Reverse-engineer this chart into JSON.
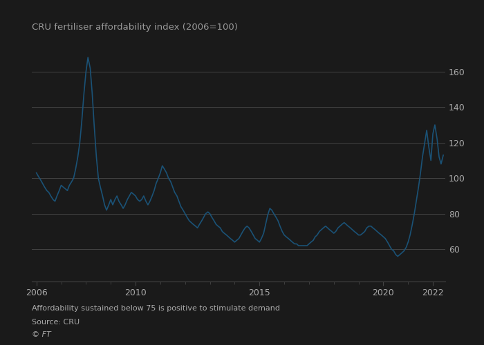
{
  "title": "CRU fertiliser affordability index (2006=100)",
  "footnote1": "Affordability sustained below 75 is positive to stimulate demand",
  "footnote2": "Source: CRU",
  "footnote3": "© FT",
  "line_color": "#1a5276",
  "background_color": "#1a1a1a",
  "grid_color": "#444444",
  "text_color": "#aaaaaa",
  "title_color": "#999999",
  "ylim": [
    42,
    178
  ],
  "yticks": [
    60,
    80,
    100,
    120,
    140,
    160
  ],
  "xlim": [
    2005.8,
    2022.5
  ],
  "xlabel_years": [
    2006,
    2010,
    2015,
    2020,
    2022
  ],
  "data": [
    [
      2006.0,
      103
    ],
    [
      2006.08,
      101
    ],
    [
      2006.17,
      99
    ],
    [
      2006.25,
      97
    ],
    [
      2006.33,
      95
    ],
    [
      2006.42,
      93
    ],
    [
      2006.5,
      92
    ],
    [
      2006.58,
      90
    ],
    [
      2006.67,
      88
    ],
    [
      2006.75,
      87
    ],
    [
      2006.83,
      90
    ],
    [
      2006.92,
      93
    ],
    [
      2007.0,
      96
    ],
    [
      2007.08,
      95
    ],
    [
      2007.17,
      94
    ],
    [
      2007.25,
      93
    ],
    [
      2007.33,
      96
    ],
    [
      2007.42,
      98
    ],
    [
      2007.5,
      100
    ],
    [
      2007.58,
      105
    ],
    [
      2007.67,
      112
    ],
    [
      2007.75,
      120
    ],
    [
      2007.83,
      132
    ],
    [
      2007.92,
      148
    ],
    [
      2008.0,
      160
    ],
    [
      2008.08,
      168
    ],
    [
      2008.17,
      162
    ],
    [
      2008.25,
      148
    ],
    [
      2008.33,
      130
    ],
    [
      2008.42,
      112
    ],
    [
      2008.5,
      100
    ],
    [
      2008.58,
      95
    ],
    [
      2008.67,
      90
    ],
    [
      2008.75,
      85
    ],
    [
      2008.83,
      82
    ],
    [
      2008.92,
      85
    ],
    [
      2009.0,
      88
    ],
    [
      2009.08,
      85
    ],
    [
      2009.17,
      88
    ],
    [
      2009.25,
      90
    ],
    [
      2009.33,
      87
    ],
    [
      2009.42,
      85
    ],
    [
      2009.5,
      83
    ],
    [
      2009.58,
      85
    ],
    [
      2009.67,
      88
    ],
    [
      2009.75,
      90
    ],
    [
      2009.83,
      92
    ],
    [
      2009.92,
      91
    ],
    [
      2010.0,
      90
    ],
    [
      2010.08,
      88
    ],
    [
      2010.17,
      87
    ],
    [
      2010.25,
      88
    ],
    [
      2010.33,
      90
    ],
    [
      2010.42,
      87
    ],
    [
      2010.5,
      85
    ],
    [
      2010.58,
      87
    ],
    [
      2010.67,
      90
    ],
    [
      2010.75,
      93
    ],
    [
      2010.83,
      97
    ],
    [
      2010.92,
      100
    ],
    [
      2011.0,
      103
    ],
    [
      2011.08,
      107
    ],
    [
      2011.17,
      105
    ],
    [
      2011.25,
      103
    ],
    [
      2011.33,
      100
    ],
    [
      2011.42,
      98
    ],
    [
      2011.5,
      95
    ],
    [
      2011.58,
      92
    ],
    [
      2011.67,
      90
    ],
    [
      2011.75,
      87
    ],
    [
      2011.83,
      84
    ],
    [
      2011.92,
      82
    ],
    [
      2012.0,
      80
    ],
    [
      2012.08,
      78
    ],
    [
      2012.17,
      76
    ],
    [
      2012.25,
      75
    ],
    [
      2012.33,
      74
    ],
    [
      2012.42,
      73
    ],
    [
      2012.5,
      72
    ],
    [
      2012.58,
      74
    ],
    [
      2012.67,
      76
    ],
    [
      2012.75,
      78
    ],
    [
      2012.83,
      80
    ],
    [
      2012.92,
      81
    ],
    [
      2013.0,
      80
    ],
    [
      2013.08,
      78
    ],
    [
      2013.17,
      76
    ],
    [
      2013.25,
      74
    ],
    [
      2013.33,
      73
    ],
    [
      2013.42,
      72
    ],
    [
      2013.5,
      70
    ],
    [
      2013.58,
      69
    ],
    [
      2013.67,
      68
    ],
    [
      2013.75,
      67
    ],
    [
      2013.83,
      66
    ],
    [
      2013.92,
      65
    ],
    [
      2014.0,
      64
    ],
    [
      2014.08,
      65
    ],
    [
      2014.17,
      66
    ],
    [
      2014.25,
      68
    ],
    [
      2014.33,
      70
    ],
    [
      2014.42,
      72
    ],
    [
      2014.5,
      73
    ],
    [
      2014.58,
      72
    ],
    [
      2014.67,
      70
    ],
    [
      2014.75,
      68
    ],
    [
      2014.83,
      66
    ],
    [
      2014.92,
      65
    ],
    [
      2015.0,
      64
    ],
    [
      2015.08,
      66
    ],
    [
      2015.17,
      69
    ],
    [
      2015.25,
      74
    ],
    [
      2015.33,
      79
    ],
    [
      2015.42,
      83
    ],
    [
      2015.5,
      82
    ],
    [
      2015.58,
      80
    ],
    [
      2015.67,
      78
    ],
    [
      2015.75,
      76
    ],
    [
      2015.83,
      73
    ],
    [
      2015.92,
      70
    ],
    [
      2016.0,
      68
    ],
    [
      2016.08,
      67
    ],
    [
      2016.17,
      66
    ],
    [
      2016.25,
      65
    ],
    [
      2016.33,
      64
    ],
    [
      2016.42,
      63
    ],
    [
      2016.5,
      63
    ],
    [
      2016.58,
      62
    ],
    [
      2016.67,
      62
    ],
    [
      2016.75,
      62
    ],
    [
      2016.83,
      62
    ],
    [
      2016.92,
      62
    ],
    [
      2017.0,
      63
    ],
    [
      2017.08,
      64
    ],
    [
      2017.17,
      65
    ],
    [
      2017.25,
      67
    ],
    [
      2017.33,
      68
    ],
    [
      2017.42,
      70
    ],
    [
      2017.5,
      71
    ],
    [
      2017.58,
      72
    ],
    [
      2017.67,
      73
    ],
    [
      2017.75,
      72
    ],
    [
      2017.83,
      71
    ],
    [
      2017.92,
      70
    ],
    [
      2018.0,
      69
    ],
    [
      2018.08,
      70
    ],
    [
      2018.17,
      72
    ],
    [
      2018.25,
      73
    ],
    [
      2018.33,
      74
    ],
    [
      2018.42,
      75
    ],
    [
      2018.5,
      74
    ],
    [
      2018.58,
      73
    ],
    [
      2018.67,
      72
    ],
    [
      2018.75,
      71
    ],
    [
      2018.83,
      70
    ],
    [
      2018.92,
      69
    ],
    [
      2019.0,
      68
    ],
    [
      2019.08,
      68
    ],
    [
      2019.17,
      69
    ],
    [
      2019.25,
      70
    ],
    [
      2019.33,
      72
    ],
    [
      2019.42,
      73
    ],
    [
      2019.5,
      73
    ],
    [
      2019.58,
      72
    ],
    [
      2019.67,
      71
    ],
    [
      2019.75,
      70
    ],
    [
      2019.83,
      69
    ],
    [
      2019.92,
      68
    ],
    [
      2020.0,
      67
    ],
    [
      2020.08,
      66
    ],
    [
      2020.17,
      64
    ],
    [
      2020.25,
      62
    ],
    [
      2020.33,
      60
    ],
    [
      2020.42,
      59
    ],
    [
      2020.5,
      57
    ],
    [
      2020.58,
      56
    ],
    [
      2020.67,
      57
    ],
    [
      2020.75,
      58
    ],
    [
      2020.83,
      59
    ],
    [
      2020.92,
      61
    ],
    [
      2021.0,
      64
    ],
    [
      2021.08,
      68
    ],
    [
      2021.17,
      74
    ],
    [
      2021.25,
      80
    ],
    [
      2021.33,
      87
    ],
    [
      2021.42,
      95
    ],
    [
      2021.5,
      103
    ],
    [
      2021.58,
      112
    ],
    [
      2021.67,
      120
    ],
    [
      2021.75,
      127
    ],
    [
      2021.83,
      118
    ],
    [
      2021.92,
      110
    ],
    [
      2022.0,
      125
    ],
    [
      2022.08,
      130
    ],
    [
      2022.17,
      122
    ],
    [
      2022.25,
      112
    ],
    [
      2022.33,
      108
    ],
    [
      2022.42,
      113
    ]
  ]
}
